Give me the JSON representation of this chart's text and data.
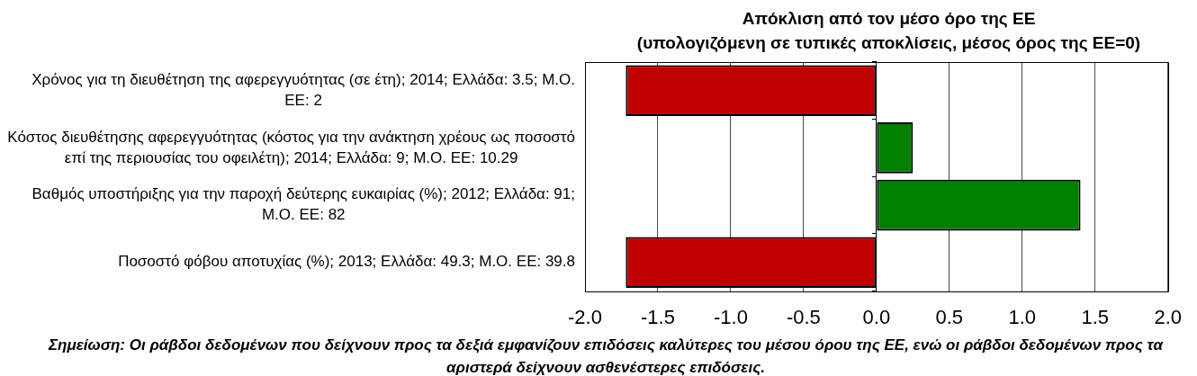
{
  "chart_data": {
    "type": "bar",
    "orientation": "horizontal",
    "title": "Απόκλιση από τον μέσο όρο της ΕΕ\n(υπολογιζόμενη σε τυπικές αποκλίσεις, μέσος όρος της ΕΕ=0)",
    "categories": [
      "Χρόνος για τη διευθέτηση της αφερεγγυότητας (σε έτη); 2014; Ελλάδα: 3.5; Μ.Ο. ΕΕ: 2",
      "Κόστος διευθέτησης αφερεγγυότητας (κόστος για την ανάκτηση χρέους ως ποσοστό επί της περιουσίας του οφειλέτη); 2014; Ελλάδα: 9; Μ.Ο. ΕΕ: 10.29",
      "Βαθμός υποστήριξης για την παροχή δεύτερης ευκαιρίας (%); 2012; Ελλάδα: 91; Μ.Ο. ΕΕ: 82",
      "Ποσοστό φόβου αποτυχίας (%); 2013; Ελλάδα: 49.3; Μ.Ο. ΕΕ: 39.8"
    ],
    "values": [
      -1.72,
      0.25,
      1.4,
      -1.72
    ],
    "colors": [
      "#c00000",
      "#008000",
      "#008000",
      "#c00000"
    ],
    "xlim": [
      -2,
      2
    ],
    "xticks": [
      {
        "value": -2,
        "label": "-2.0"
      },
      {
        "value": -1.5,
        "label": "-1.5"
      },
      {
        "value": -1,
        "label": "-1.0"
      },
      {
        "value": -0.5,
        "label": "-0.5"
      },
      {
        "value": 0,
        "label": "0.0"
      },
      {
        "value": 0.5,
        "label": "0.5"
      },
      {
        "value": 1,
        "label": "1.0"
      },
      {
        "value": 1.5,
        "label": "1.5"
      },
      {
        "value": 2,
        "label": "2.0"
      }
    ],
    "grid": "x",
    "annotations": [
      "Σημείωση: Οι ράβδοι δεδομένων που δείχνουν προς τα δεξιά εμφανίζουν επιδόσεις καλύτερες του μέσου όρου της ΕΕ, ενώ οι ράβδοι δεδομένων προς τα αριστερά δείχνουν ασθενέστερες επιδόσεις."
    ]
  }
}
